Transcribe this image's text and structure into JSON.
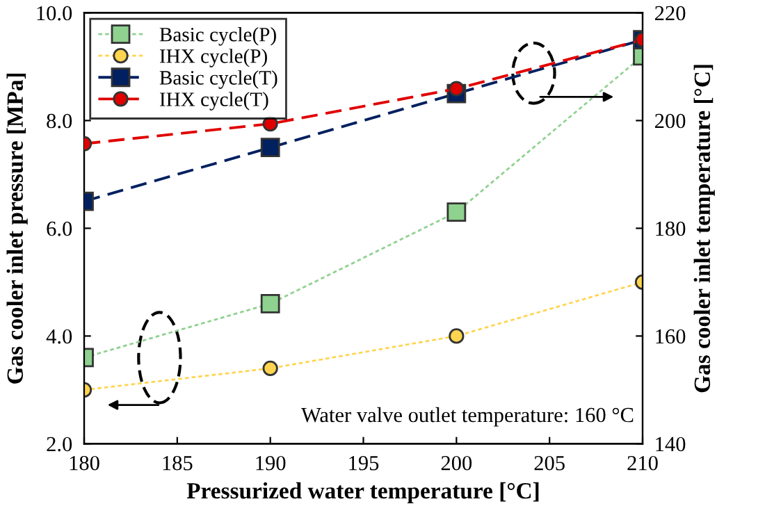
{
  "chart_data": {
    "type": "line",
    "xlabel": "Pressurized water temperature [°C]",
    "ylabel": "Gas cooler inlet pressure [MPa]",
    "y2label": "Gas cooler inlet temperature [°C]",
    "x": [
      180,
      190,
      200,
      210
    ],
    "series": [
      {
        "name": "Basic cycle(P)",
        "color": "#8fd18f",
        "marker": "square",
        "line_style": "dotted",
        "values": [
          3.6,
          4.6,
          6.3,
          9.2
        ]
      },
      {
        "name": "IHX cycle(P)",
        "color": "#ffd54f",
        "marker": "circle",
        "line_style": "dotted",
        "values": [
          3.0,
          3.4,
          4.0,
          5.0
        ]
      },
      {
        "name": "Basic cycle(T)",
        "color": "#002060",
        "marker": "square",
        "line_style": "dashed",
        "axis": "y2",
        "values": [
          185,
          195,
          205,
          215
        ]
      },
      {
        "name": "IHX cycle(T)",
        "color": "#e00000",
        "marker": "circle",
        "line_style": "dashed",
        "axis": "y2",
        "values": [
          195.7,
          199.4,
          205.9,
          215
        ]
      }
    ],
    "xlim": [
      180,
      210
    ],
    "xticks": [
      180,
      185,
      190,
      195,
      200,
      205,
      210
    ],
    "ylim": [
      2.0,
      10.0
    ],
    "yticks": [
      {
        "value": 2,
        "label": "2.0"
      },
      {
        "value": 4,
        "label": "4.0"
      },
      {
        "value": 6,
        "label": "6.0"
      },
      {
        "value": 8,
        "label": "8.0"
      },
      {
        "value": 10,
        "label": "10.0"
      }
    ],
    "y2lim": [
      140,
      220
    ],
    "y2ticks": [
      140,
      160,
      180,
      200,
      220
    ],
    "annotations": [
      "Water valve outlet temperature: 160 °C"
    ],
    "legend": "top left",
    "grid": false
  }
}
